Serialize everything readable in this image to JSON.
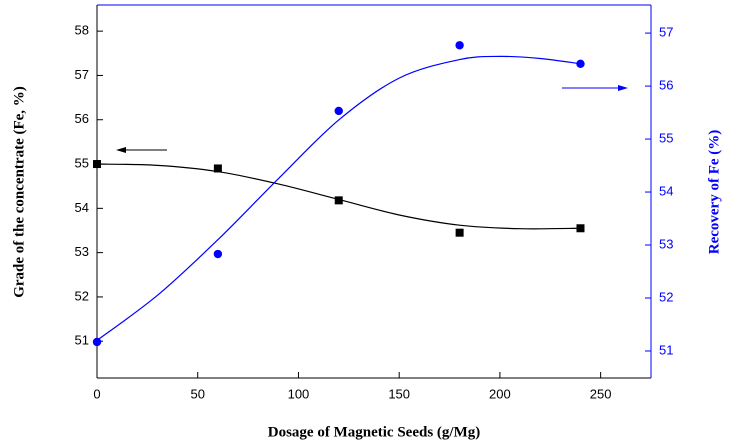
{
  "chart_data": {
    "type": "scatter",
    "xlabel": "Dosage of Magnetic Seeds (g/Mg)",
    "ylabel": "Grade of the concentrate (Fe, %)",
    "y2label": "Recovery of Fe (%)",
    "xlim": [
      0,
      275
    ],
    "xticks": [
      0,
      50,
      100,
      150,
      200,
      250
    ],
    "ylim": [
      50.17,
      58.59
    ],
    "yticks": [
      51,
      52,
      53,
      54,
      55,
      56,
      57,
      58
    ],
    "y2lim": [
      50.49,
      57.53
    ],
    "y2ticks": [
      51,
      52,
      53,
      54,
      55,
      56,
      57
    ],
    "y2color": "#0000ff",
    "series": [
      {
        "color": "#000000",
        "marker": "square",
        "x": [
          0,
          60,
          120,
          180,
          240
        ],
        "values": [
          55.0,
          54.9,
          54.18,
          53.45,
          53.55
        ],
        "fit_x": [
          0,
          30,
          60,
          90,
          120,
          150,
          180,
          210,
          240
        ],
        "fit_values": [
          55.0,
          54.97,
          54.83,
          54.55,
          54.2,
          53.85,
          53.62,
          53.54,
          53.55
        ]
      },
      {
        "color": "#0000ff",
        "marker": "circle",
        "axis": "y2",
        "x": [
          0,
          60,
          120,
          180,
          240
        ],
        "values": [
          51.17,
          52.83,
          55.53,
          56.77,
          56.42
        ],
        "fit_x": [
          0,
          30,
          60,
          90,
          120,
          150,
          180,
          200,
          220,
          240
        ],
        "fit_values": [
          51.2,
          52.05,
          53.1,
          54.25,
          55.36,
          56.15,
          56.5,
          56.56,
          56.52,
          56.42
        ]
      }
    ]
  }
}
